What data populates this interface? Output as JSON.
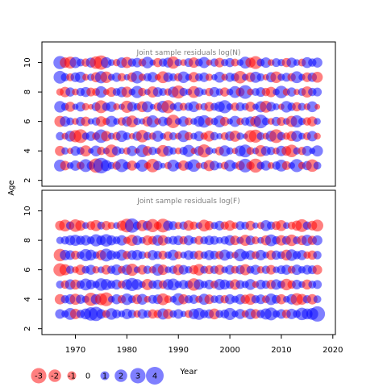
{
  "chart_data": [
    {
      "type": "scatter",
      "title": "Joint sample residuals log(N)",
      "xlim": [
        1963.5,
        2020.5
      ],
      "ylim": [
        1.6,
        11.4
      ],
      "yticks": [
        2,
        4,
        6,
        8,
        10
      ],
      "ylabel": "Age",
      "grid": false,
      "ages": [
        3,
        4,
        5,
        6,
        7,
        8,
        9,
        10
      ],
      "years_start": 1967,
      "years_end": 2017,
      "residual_matrix": [
        [
          1.8,
          -1.2,
          0.6,
          1.4,
          -0.8,
          2.1,
          0.9,
          -2.6,
          3.1,
          1.6,
          0.7,
          -0.9,
          2.2,
          0.8,
          -1.3,
          0.5,
          1.9,
          -0.6,
          -2.3,
          1.1,
          0.4,
          -0.7,
          1.8,
          0.6,
          -1.4,
          0.9,
          2.0,
          -0.5,
          0.7,
          -1.6,
          1.2,
          0.5,
          -0.8,
          1.7,
          0.6,
          -1.1,
          2.4,
          -0.9,
          -2.5,
          0.8,
          1.3,
          -0.6,
          0.9,
          1.8,
          -1.0,
          0.6,
          2.2,
          -0.7,
          1.1,
          -2.0,
          0.8
        ],
        [
          -1.3,
          0.7,
          -0.5,
          1.2,
          0.8,
          -1.6,
          0.4,
          1.5,
          -0.9,
          0.6,
          -2.1,
          1.1,
          0.5,
          -0.7,
          1.4,
          -0.4,
          2.0,
          -1.2,
          0.9,
          0.5,
          -1.8,
          1.3,
          0.7,
          -0.6,
          0.9,
          1.9,
          -0.5,
          1.2,
          -2.2,
          0.8,
          0.4,
          -1.0,
          1.6,
          0.7,
          -0.5,
          1.5,
          2.1,
          -0.8,
          0.6,
          -1.7,
          1.2,
          0.9,
          -0.6,
          1.4,
          -1.2,
          -2.0,
          0.7,
          -0.9,
          1.3,
          0.5,
          1.6
        ],
        [
          0.9,
          -0.6,
          1.5,
          -1.9,
          -2.4,
          0.7,
          1.2,
          -0.8,
          2.3,
          -1.4,
          0.6,
          -0.9,
          1.7,
          0.8,
          -0.5,
          1.1,
          -2.0,
          0.9,
          -0.7,
          1.6,
          0.5,
          -1.1,
          0.8,
          -0.6,
          1.8,
          -0.9,
          0.6,
          1.3,
          -0.7,
          -1.5,
          0.9,
          0.5,
          -0.8,
          1.2,
          -1.6,
          0.7,
          0.4,
          -1.9,
          -2.2,
          0.8,
          -0.6,
          1.5,
          -2.4,
          0.9,
          -0.7,
          -1.3,
          1.6,
          0.6,
          -0.8,
          1.4,
          -0.6
        ],
        [
          -1.6,
          1.4,
          0.8,
          -0.6,
          1.1,
          -1.2,
          0.5,
          0.9,
          -1.4,
          -0.7,
          1.6,
          0.6,
          -0.9,
          1.3,
          -1.8,
          0.7,
          0.5,
          -1.3,
          1.9,
          -0.6,
          1.2,
          0.9,
          -2.3,
          0.6,
          1.4,
          -0.8,
          0.6,
          1.5,
          2.0,
          -0.9,
          0.7,
          1.8,
          -1.1,
          0.5,
          1.6,
          -0.7,
          0.9,
          1.3,
          -1.5,
          2.4,
          0.8,
          -0.6,
          1.1,
          -1.0,
          0.6,
          -1.6,
          1.9,
          0.7,
          -0.9,
          -1.3,
          0.6
        ],
        [
          1.7,
          0.8,
          -1.3,
          0.5,
          1.2,
          -0.7,
          -0.4,
          1.0,
          -2.1,
          0.9,
          1.4,
          -0.6,
          0.5,
          -1.9,
          1.2,
          0.7,
          -1.5,
          1.6,
          0.4,
          -0.9,
          1.8,
          -2.2,
          0.6,
          1.1,
          -0.8,
          0.9,
          1.5,
          -0.6,
          0.7,
          -1.2,
          0.8,
          1.4,
          2.2,
          0.6,
          -0.9,
          1.0,
          0.7,
          -1.3,
          0.5,
          1.6,
          -1.8,
          1.2,
          0.6,
          -0.5,
          1.7,
          0.9,
          -1.1,
          0.8,
          -0.6,
          1.5,
          -0.4
        ],
        [
          -0.7,
          -1.4,
          1.1,
          -0.6,
          0.9,
          1.3,
          -1.0,
          -0.8,
          1.7,
          -0.5,
          -1.2,
          0.8,
          1.4,
          -1.5,
          0.6,
          1.9,
          -0.9,
          0.5,
          -1.6,
          1.2,
          0.8,
          -0.7,
          1.5,
          -2.2,
          0.9,
          0.6,
          -1.8,
          1.1,
          0.5,
          -0.9,
          1.3,
          0.7,
          -1.1,
          0.6,
          1.8,
          -1.0,
          2.4,
          -0.6,
          0.8,
          1.2,
          -0.9,
          -1.4,
          0.6,
          2.0,
          -0.7,
          1.1,
          -0.5,
          0.8,
          -1.6,
          0.9,
          1.0
        ],
        [
          2.1,
          0.9,
          -0.8,
          1.2,
          1.6,
          -0.6,
          0.7,
          -1.3,
          1.9,
          -1.7,
          0.6,
          1.1,
          -0.9,
          0.5,
          -1.2,
          2.0,
          -0.7,
          0.9,
          1.4,
          -0.5,
          -1.8,
          1.2,
          0.8,
          -0.9,
          1.7,
          0.6,
          -1.4,
          0.8,
          1.2,
          -0.7,
          0.5,
          1.5,
          -0.6,
          1.1,
          0.9,
          -2.0,
          0.6,
          -1.2,
          1.6,
          0.8,
          -0.5,
          1.3,
          -1.7,
          0.7,
          1.0,
          -0.9,
          1.8,
          0.6,
          -1.2,
          1.1,
          -1.5
        ],
        [
          2.2,
          -1.4,
          -1.8,
          1.6,
          0.8,
          -0.9,
          1.3,
          -2.0,
          -2.6,
          1.5,
          0.6,
          -0.7,
          1.4,
          -1.6,
          0.9,
          1.2,
          -0.8,
          1.7,
          0.5,
          -1.1,
          0.9,
          1.3,
          -1.9,
          0.7,
          -0.6,
          1.0,
          -1.4,
          0.8,
          1.6,
          -0.5,
          0.9,
          -1.2,
          0.7,
          1.1,
          -0.8,
          0.6,
          1.8,
          -1.3,
          -2.1,
          0.8,
          1.4,
          -0.6,
          1.0,
          0.7,
          -1.1,
          1.3,
          0.6,
          -0.8,
          1.5,
          0.9,
          1.3
        ]
      ]
    },
    {
      "type": "scatter",
      "title": "Joint sample residuals log(F)",
      "xlim": [
        1963.5,
        2020.5
      ],
      "ylim": [
        1.6,
        11.4
      ],
      "yticks": [
        2,
        4,
        6,
        8,
        10
      ],
      "xticks": [
        1970,
        1980,
        1990,
        2000,
        2010,
        2020
      ],
      "xlabel": "Year",
      "grid": false,
      "ages": [
        3,
        4,
        5,
        6,
        7,
        8,
        9
      ],
      "years_start": 1967,
      "years_end": 2017,
      "residual_matrix": [
        [
          1.2,
          0.7,
          1.8,
          -1.4,
          0.9,
          1.5,
          2.3,
          2.6,
          1.2,
          -0.8,
          1.7,
          1.0,
          0.6,
          1.4,
          0.9,
          -0.7,
          1.2,
          0.8,
          -1.1,
          -0.9,
          1.6,
          -1.3,
          0.7,
          1.2,
          0.5,
          -0.8,
          1.4,
          1.8,
          0.9,
          1.1,
          -1.5,
          0.8,
          1.0,
          1.9,
          0.6,
          1.3,
          -0.7,
          1.5,
          -1.2,
          0.9,
          1.6,
          2.1,
          0.7,
          1.2,
          -1.0,
          1.4,
          0.8,
          2.0,
          1.5,
          1.8,
          3.0
        ],
        [
          -1.4,
          0.9,
          1.3,
          -1.6,
          1.1,
          0.7,
          -2.2,
          1.4,
          -1.8,
          -2.4,
          0.6,
          1.3,
          -0.9,
          1.7,
          0.8,
          -1.2,
          1.5,
          -0.6,
          1.0,
          1.2,
          -1.8,
          -0.8,
          0.6,
          1.9,
          -1.3,
          0.9,
          1.1,
          -0.7,
          1.6,
          -1.2,
          0.8,
          1.0,
          -0.9,
          1.3,
          0.7,
          1.4,
          -1.1,
          -1.6,
          0.9,
          1.2,
          -0.8,
          1.7,
          1.0,
          -1.3,
          0.6,
          1.4,
          -1.9,
          -1.5,
          0.9,
          -1.4,
          0.8
        ],
        [
          0.8,
          -0.9,
          1.4,
          -1.3,
          0.9,
          1.8,
          1.2,
          0.7,
          2.0,
          1.6,
          0.9,
          1.3,
          -0.8,
          1.4,
          2.2,
          1.5,
          0.6,
          -1.6,
          0.9,
          1.2,
          -0.9,
          1.5,
          1.8,
          0.7,
          1.1,
          0.9,
          -2.0,
          1.4,
          0.7,
          1.2,
          -0.8,
          1.6,
          1.3,
          0.9,
          -1.4,
          1.0,
          0.7,
          1.5,
          -0.6,
          1.2,
          0.9,
          -1.1,
          1.4,
          0.8,
          -1.7,
          -0.9,
          1.2,
          0.6,
          -1.3,
          0.8,
          1.0
        ],
        [
          -2.2,
          -1.6,
          0.9,
          -0.6,
          -1.4,
          0.8,
          1.3,
          -0.7,
          0.6,
          -1.2,
          0.9,
          1.5,
          -0.8,
          1.4,
          -1.9,
          0.6,
          -1.2,
          0.9,
          -0.7,
          1.8,
          -1.4,
          0.6,
          0.9,
          -1.5,
          1.2,
          0.7,
          -1.1,
          -1.7,
          0.8,
          -1.0,
          0.9,
          -1.3,
          0.6,
          1.2,
          -0.8,
          1.1,
          -1.6,
          0.8,
          1.3,
          -0.7,
          0.9,
          -1.2,
          0.6,
          1.0,
          1.3,
          -0.8,
          1.4,
          0.7,
          1.2,
          1.0,
          -1.2
        ],
        [
          -2.0,
          1.4,
          1.2,
          -1.0,
          0.8,
          1.9,
          1.5,
          0.7,
          -1.3,
          2.1,
          1.2,
          0.8,
          1.6,
          -0.9,
          1.2,
          1.4,
          0.8,
          -0.6,
          1.3,
          0.9,
          -1.0,
          0.7,
          1.5,
          -0.8,
          0.6,
          1.2,
          0.9,
          -1.1,
          0.7,
          1.3,
          1.0,
          -0.9,
          1.6,
          0.8,
          -0.6,
          2.0,
          0.9,
          1.2,
          -0.8,
          1.4,
          0.6,
          -1.2,
          1.1,
          0.8,
          -1.5,
          1.7,
          0.9,
          1.3,
          -0.7,
          -1.1,
          0.9
        ],
        [
          0.7,
          0.9,
          1.3,
          1.6,
          1.1,
          1.4,
          0.8,
          1.9,
          1.2,
          2.0,
          1.3,
          0.8,
          1.4,
          -0.7,
          -1.6,
          1.2,
          0.6,
          -1.3,
          -1.0,
          1.5,
          -1.4,
          0.7,
          1.0,
          1.2,
          -0.9,
          1.3,
          0.6,
          -1.0,
          0.8,
          1.2,
          1.0,
          0.6,
          0.9,
          1.4,
          -1.2,
          0.7,
          -1.6,
          1.2,
          -0.8,
          0.6,
          -1.3,
          1.8,
          0.9,
          -1.4,
          1.0,
          -1.7,
          0.8,
          -1.2,
          1.6,
          -1.1,
          1.3
        ],
        [
          -1.2,
          -1.8,
          0.9,
          -2.0,
          -1.4,
          0.6,
          -1.0,
          -1.6,
          0.8,
          -1.1,
          -0.7,
          0.6,
          -1.3,
          -2.4,
          2.6,
          0.9,
          -1.6,
          1.2,
          -2.2,
          -0.8,
          -2.4,
          1.3,
          1.0,
          -0.7,
          0.9,
          -1.4,
          -0.9,
          0.6,
          -1.8,
          -1.1,
          0.7,
          1.2,
          -0.9,
          -1.4,
          -0.6,
          1.0,
          0.8,
          -1.2,
          0.5,
          -0.7,
          1.5,
          0.9,
          -1.0,
          -1.5,
          0.6,
          -0.8,
          -1.3,
          -2.1,
          0.9,
          -1.2,
          -1.8
        ]
      ]
    }
  ],
  "legend": {
    "values": [
      -3,
      -2,
      -1,
      0,
      1,
      2,
      3,
      4
    ],
    "labels": [
      "-3",
      "-2",
      "-1",
      "0",
      "1",
      "2",
      "3",
      "4"
    ],
    "negative_color": "#ff0000",
    "positive_color": "#0000ff"
  }
}
